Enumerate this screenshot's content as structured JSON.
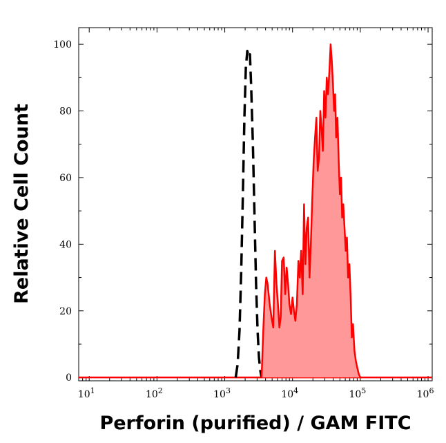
{
  "chart_data": {
    "type": "area",
    "xlabel": "Perforin (purified) / GAM FITC",
    "ylabel": "Relative Cell Count",
    "xscale": "log",
    "xlim": [
      7,
      1150000
    ],
    "ylim": [
      -1,
      105
    ],
    "grid": false,
    "legend": "none",
    "y_ticks": [
      0,
      20,
      40,
      60,
      80,
      100
    ],
    "x_ticks": [
      {
        "base": "10",
        "exp": "1",
        "value": 10
      },
      {
        "base": "10",
        "exp": "2",
        "value": 100
      },
      {
        "base": "10",
        "exp": "3",
        "value": 1000
      },
      {
        "base": "10",
        "exp": "4",
        "value": 10000
      },
      {
        "base": "10",
        "exp": "5",
        "value": 100000
      },
      {
        "base": "10",
        "exp": "6",
        "value": 1000000
      }
    ],
    "series": [
      {
        "style": "dashed",
        "color": "#000000",
        "fill": "none",
        "x": [
          1450,
          1550,
          1650,
          1750,
          1850,
          1950,
          2050,
          2150,
          2250,
          2350,
          2450,
          2600,
          2750,
          2900,
          3050,
          3200,
          3350,
          3500
        ],
        "y": [
          0,
          4,
          14,
          32,
          55,
          78,
          93,
          98,
          96,
          97,
          88,
          70,
          48,
          28,
          14,
          6,
          2,
          0
        ]
      },
      {
        "style": "solid",
        "color": "#ff0000",
        "fill": "#ff9999",
        "x": [
          3500,
          3700,
          3900,
          4100,
          4300,
          4600,
          4900,
          5200,
          5500,
          5800,
          6100,
          6400,
          6700,
          7000,
          7400,
          7800,
          8200,
          8600,
          9000,
          9500,
          10000,
          10500,
          11000,
          11600,
          12200,
          12800,
          13400,
          14100,
          14800,
          15500,
          16200,
          17000,
          17800,
          18600,
          19500,
          20500,
          21500,
          22500,
          23500,
          24600,
          25700,
          26800,
          28000,
          29300,
          30600,
          32000,
          33400,
          35000,
          36500,
          38000,
          39500,
          41000,
          42500,
          44000,
          46000,
          48000,
          50000,
          52000,
          54000,
          56000,
          58500,
          61000,
          63500,
          66000,
          69000,
          72000,
          75000,
          78000,
          82000,
          86000,
          90000,
          95000,
          100000,
          105000
        ],
        "y": [
          0,
          14,
          25,
          30,
          28,
          22,
          18,
          15,
          38,
          28,
          22,
          15,
          18,
          35,
          36,
          25,
          33,
          28,
          22,
          19,
          24,
          20,
          17,
          22,
          35,
          30,
          38,
          25,
          52,
          34,
          45,
          48,
          30,
          40,
          53,
          65,
          72,
          78,
          62,
          66,
          80,
          75,
          68,
          86,
          78,
          90,
          85,
          92,
          100,
          95,
          88,
          80,
          85,
          72,
          78,
          65,
          55,
          60,
          48,
          52,
          45,
          38,
          42,
          30,
          34,
          24,
          12,
          16,
          8,
          5,
          3,
          1,
          0,
          0
        ]
      }
    ]
  }
}
